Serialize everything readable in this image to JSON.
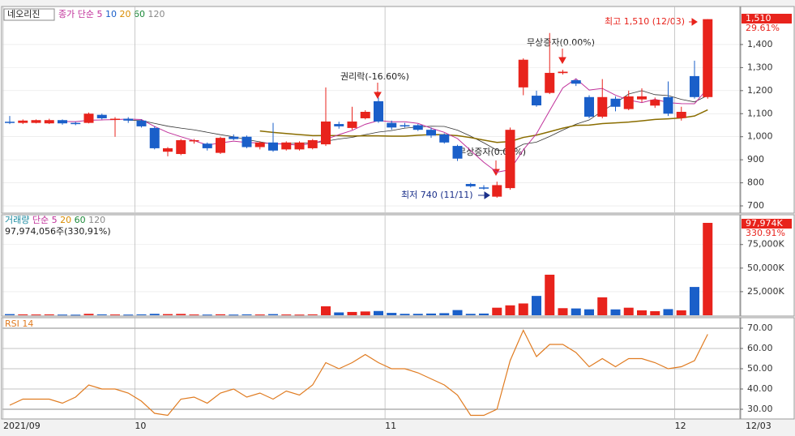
{
  "chart_data": [
    {
      "type": "candlestick",
      "title": "네오리진",
      "legend": [
        "종가 단순 5",
        "10",
        "20",
        "60",
        "120"
      ],
      "categories": [
        "2021/09",
        null,
        null,
        null,
        null,
        null,
        null,
        null,
        null,
        null,
        "10",
        null,
        null,
        null,
        null,
        null,
        null,
        null,
        null,
        null,
        null,
        null,
        null,
        null,
        null,
        null,
        null,
        null,
        null,
        "11",
        null,
        null,
        null,
        null,
        null,
        null,
        null,
        null,
        null,
        null,
        null,
        null,
        null,
        null,
        null,
        null,
        null,
        null,
        null,
        null,
        null,
        "12",
        null,
        null
      ],
      "open": [
        1065,
        1060,
        1060,
        1058,
        1072,
        1060,
        1060,
        1095,
        1075,
        1078,
        1070,
        1038,
        935,
        925,
        980,
        970,
        930,
        1000,
        1000,
        955,
        975,
        945,
        945,
        950,
        967,
        1055,
        1038,
        1080,
        1154,
        1060,
        1050,
        1050,
        1030,
        1010,
        960,
        795,
        780,
        740,
        777,
        1214,
        1178,
        1190,
        1276,
        1245,
        1172,
        1087,
        1165,
        1120,
        1162,
        1135,
        1172,
        1081,
        1263,
        1172
      ],
      "high": [
        1090,
        1075,
        1075,
        1078,
        1075,
        1065,
        1105,
        1100,
        1085,
        1085,
        1075,
        1045,
        955,
        990,
        990,
        975,
        1000,
        1010,
        1005,
        980,
        1060,
        980,
        980,
        990,
        1214,
        1065,
        1130,
        1115,
        1170,
        1070,
        1060,
        1055,
        1040,
        1015,
        965,
        800,
        790,
        805,
        1040,
        1340,
        1200,
        1450,
        1290,
        1250,
        1180,
        1250,
        1175,
        1200,
        1210,
        1170,
        1240,
        1130,
        1330,
        1510
      ],
      "low": [
        1055,
        1055,
        1058,
        1055,
        1052,
        1050,
        1058,
        1075,
        1000,
        1060,
        1040,
        945,
        915,
        920,
        970,
        940,
        925,
        985,
        950,
        945,
        935,
        940,
        940,
        945,
        960,
        1035,
        1030,
        1075,
        1060,
        1030,
        1040,
        1025,
        995,
        970,
        895,
        780,
        770,
        735,
        770,
        1180,
        1130,
        1185,
        1270,
        1220,
        1080,
        1080,
        1110,
        1115,
        1150,
        1125,
        1090,
        1070,
        1165,
        1165
      ],
      "close": [
        1060,
        1070,
        1072,
        1072,
        1058,
        1055,
        1100,
        1080,
        1078,
        1070,
        1045,
        950,
        950,
        985,
        985,
        950,
        995,
        990,
        955,
        975,
        940,
        975,
        975,
        985,
        1066,
        1045,
        1066,
        1108,
        1066,
        1040,
        1045,
        1030,
        1005,
        975,
        905,
        785,
        775,
        790,
        1030,
        1334,
        1136,
        1277,
        1282,
        1230,
        1087,
        1172,
        1130,
        1175,
        1175,
        1160,
        1100,
        1108,
        1172,
        1510
      ],
      "up_color": "#e8231c",
      "down_color": "#1a5fc9",
      "ylim": [
        672,
        1558
      ],
      "yticks": [
        700,
        800,
        900,
        {
          "value": 1000,
          "label": "1,000"
        },
        {
          "value": 1100,
          "label": "1,100"
        },
        {
          "value": 1200,
          "label": "1,200"
        },
        {
          "value": 1300,
          "label": "1,300"
        },
        {
          "value": 1400,
          "label": "1,400"
        }
      ],
      "annotations": [
        "최고 1,510 (12/03)",
        "최저 740 (11/11)",
        "권리락(-16.60%)",
        "무상증자(0.00%)",
        "무상증자(0.00%)"
      ],
      "last_label": "1,510",
      "change_label": "29.61%",
      "x_end_label": "12/03"
    },
    {
      "type": "bar",
      "title": "거래량",
      "legend": [
        "단순 5",
        "20",
        "60",
        "120"
      ],
      "subtitle": "97,974,056주(330,91%)",
      "values": [
        1200,
        900,
        800,
        900,
        700,
        600,
        1500,
        900,
        800,
        700,
        900,
        1500,
        1200,
        1400,
        800,
        700,
        1000,
        700,
        900,
        800,
        1200,
        800,
        700,
        900,
        9500,
        3000,
        3500,
        4000,
        4500,
        2500,
        1500,
        1500,
        1800,
        2200,
        5500,
        1500,
        1800,
        8000,
        10500,
        12500,
        20500,
        43000,
        7500,
        7200,
        6300,
        19000,
        6200,
        8000,
        5200,
        4300,
        6500,
        5200,
        30000,
        97974
      ],
      "ylim": [
        0,
        104000
      ],
      "yticks": [
        {
          "value": 25000,
          "label": "25,000K"
        },
        {
          "value": 50000,
          "label": "50,000K"
        },
        {
          "value": 75000,
          "label": "75,000K"
        }
      ],
      "last_label": "97,974K",
      "change_label": "330.91%"
    },
    {
      "type": "line",
      "title": "RSI 14",
      "color": "#e07b20",
      "values": [
        32,
        35,
        35,
        35,
        33,
        36,
        42,
        40,
        40,
        38,
        34,
        28,
        27,
        35,
        36,
        33,
        38,
        40,
        36,
        38,
        35,
        39,
        37,
        42,
        53,
        50,
        53,
        57,
        53,
        50,
        50,
        48,
        45,
        42,
        37,
        27,
        27,
        30,
        54,
        69,
        56,
        62,
        62,
        58,
        51,
        55,
        51,
        55,
        55,
        53,
        50,
        51,
        54,
        67
      ],
      "ylim": [
        25.2,
        74.8
      ],
      "yticks": [
        {
          "value": 30,
          "label": "30.00"
        },
        {
          "value": 40,
          "label": "40.00"
        },
        {
          "value": 50,
          "label": "50.00"
        },
        {
          "value": 60,
          "label": "60.00"
        },
        {
          "value": 70,
          "label": "70.00"
        }
      ]
    }
  ]
}
